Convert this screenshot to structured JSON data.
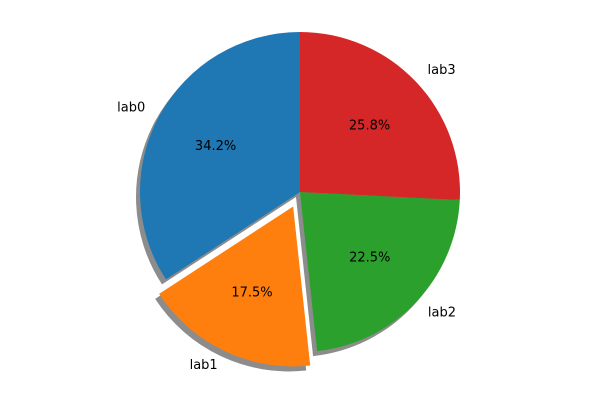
{
  "chart_data": {
    "type": "pie",
    "title": "",
    "start_angle_deg": 90,
    "direction": "counterclockwise",
    "shadow": true,
    "labels": [
      "lab0",
      "lab1",
      "lab2",
      "lab3"
    ],
    "values": [
      34.2,
      17.5,
      22.5,
      25.8
    ],
    "percent_labels": [
      "34.2%",
      "17.5%",
      "22.5%",
      "25.8%"
    ],
    "explode": [
      0,
      0.1,
      0,
      0
    ],
    "colors": [
      "#1f77b4",
      "#ff7f0e",
      "#2ca02c",
      "#d62728"
    ]
  }
}
